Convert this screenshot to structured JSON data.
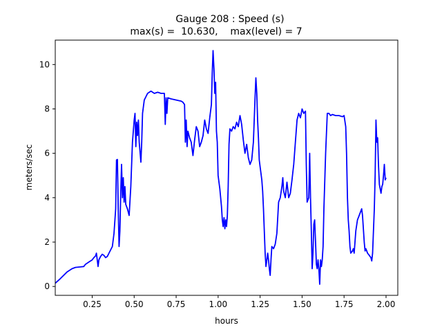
{
  "chart_data": {
    "type": "line",
    "title_line1": "Gauge 208 : Speed (s)",
    "title_line2": "max(s) =  10.630,    max(level) = 7",
    "xlabel": "hours",
    "ylabel": "meters/sec",
    "xlim": [
      0.03,
      2.07
    ],
    "ylim": [
      -0.4,
      11.1
    ],
    "xticks": [
      0.25,
      0.5,
      0.75,
      1.0,
      1.25,
      1.5,
      1.75,
      2.0
    ],
    "xtick_labels": [
      "0.25",
      "0.50",
      "0.75",
      "1.00",
      "1.25",
      "1.50",
      "1.75",
      "2.00"
    ],
    "yticks": [
      0,
      2,
      4,
      6,
      8,
      10
    ],
    "ytick_labels": [
      "0",
      "2",
      "4",
      "6",
      "8",
      "10"
    ],
    "grid": false,
    "line_color": "#0000ff",
    "series": [
      {
        "points": [
          [
            0.03,
            0.15
          ],
          [
            0.06,
            0.35
          ],
          [
            0.1,
            0.65
          ],
          [
            0.13,
            0.8
          ],
          [
            0.15,
            0.86
          ],
          [
            0.18,
            0.88
          ],
          [
            0.2,
            0.9
          ],
          [
            0.21,
            1.0
          ],
          [
            0.23,
            1.1
          ],
          [
            0.25,
            1.2
          ],
          [
            0.26,
            1.3
          ],
          [
            0.27,
            1.38
          ],
          [
            0.275,
            1.5
          ],
          [
            0.28,
            1.2
          ],
          [
            0.285,
            0.9
          ],
          [
            0.29,
            1.2
          ],
          [
            0.3,
            1.35
          ],
          [
            0.31,
            1.45
          ],
          [
            0.32,
            1.4
          ],
          [
            0.33,
            1.3
          ],
          [
            0.34,
            1.35
          ],
          [
            0.35,
            1.5
          ],
          [
            0.37,
            1.8
          ],
          [
            0.38,
            2.4
          ],
          [
            0.39,
            3.5
          ],
          [
            0.395,
            5.7
          ],
          [
            0.4,
            5.72
          ],
          [
            0.405,
            3.5
          ],
          [
            0.41,
            1.8
          ],
          [
            0.415,
            2.5
          ],
          [
            0.42,
            4.2
          ],
          [
            0.425,
            5.5
          ],
          [
            0.43,
            4.0
          ],
          [
            0.435,
            4.9
          ],
          [
            0.44,
            3.8
          ],
          [
            0.445,
            4.5
          ],
          [
            0.45,
            3.7
          ],
          [
            0.46,
            3.5
          ],
          [
            0.47,
            3.2
          ],
          [
            0.48,
            4.5
          ],
          [
            0.49,
            6.5
          ],
          [
            0.5,
            7.5
          ],
          [
            0.505,
            7.8
          ],
          [
            0.51,
            6.3
          ],
          [
            0.515,
            7.4
          ],
          [
            0.52,
            6.8
          ],
          [
            0.525,
            7.5
          ],
          [
            0.53,
            6.5
          ],
          [
            0.54,
            5.6
          ],
          [
            0.545,
            6.5
          ],
          [
            0.55,
            7.8
          ],
          [
            0.56,
            8.4
          ],
          [
            0.58,
            8.7
          ],
          [
            0.6,
            8.8
          ],
          [
            0.62,
            8.7
          ],
          [
            0.64,
            8.75
          ],
          [
            0.66,
            8.7
          ],
          [
            0.68,
            8.7
          ],
          [
            0.685,
            7.3
          ],
          [
            0.69,
            8.5
          ],
          [
            0.695,
            7.8
          ],
          [
            0.7,
            8.5
          ],
          [
            0.72,
            8.45
          ],
          [
            0.75,
            8.4
          ],
          [
            0.78,
            8.35
          ],
          [
            0.79,
            8.3
          ],
          [
            0.8,
            8.2
          ],
          [
            0.805,
            6.5
          ],
          [
            0.81,
            7.5
          ],
          [
            0.815,
            6.3
          ],
          [
            0.82,
            7.0
          ],
          [
            0.83,
            6.7
          ],
          [
            0.84,
            6.5
          ],
          [
            0.85,
            5.9
          ],
          [
            0.86,
            6.6
          ],
          [
            0.87,
            7.2
          ],
          [
            0.88,
            7.0
          ],
          [
            0.89,
            6.3
          ],
          [
            0.9,
            6.5
          ],
          [
            0.91,
            6.8
          ],
          [
            0.92,
            7.5
          ],
          [
            0.93,
            7.1
          ],
          [
            0.94,
            6.9
          ],
          [
            0.95,
            7.6
          ],
          [
            0.96,
            8.2
          ],
          [
            0.965,
            9.6
          ],
          [
            0.97,
            10.63
          ],
          [
            0.975,
            9.8
          ],
          [
            0.98,
            8.7
          ],
          [
            0.985,
            9.2
          ],
          [
            0.99,
            7.0
          ],
          [
            0.995,
            6.5
          ],
          [
            1.0,
            5.0
          ],
          [
            1.01,
            4.4
          ],
          [
            1.02,
            3.6
          ],
          [
            1.025,
            3.0
          ],
          [
            1.03,
            2.7
          ],
          [
            1.035,
            3.1
          ],
          [
            1.04,
            2.6
          ],
          [
            1.045,
            3.0
          ],
          [
            1.05,
            2.7
          ],
          [
            1.055,
            3.2
          ],
          [
            1.06,
            4.5
          ],
          [
            1.065,
            6.4
          ],
          [
            1.07,
            7.1
          ],
          [
            1.08,
            7.0
          ],
          [
            1.09,
            7.2
          ],
          [
            1.1,
            7.1
          ],
          [
            1.11,
            7.4
          ],
          [
            1.12,
            7.2
          ],
          [
            1.13,
            7.7
          ],
          [
            1.14,
            7.3
          ],
          [
            1.15,
            6.6
          ],
          [
            1.16,
            6.0
          ],
          [
            1.17,
            6.4
          ],
          [
            1.18,
            5.8
          ],
          [
            1.19,
            5.5
          ],
          [
            1.2,
            5.7
          ],
          [
            1.21,
            6.5
          ],
          [
            1.22,
            8.5
          ],
          [
            1.225,
            9.4
          ],
          [
            1.23,
            8.7
          ],
          [
            1.235,
            7.5
          ],
          [
            1.24,
            6.7
          ],
          [
            1.245,
            5.7
          ],
          [
            1.25,
            5.4
          ],
          [
            1.26,
            4.8
          ],
          [
            1.265,
            4.3
          ],
          [
            1.27,
            3.5
          ],
          [
            1.275,
            2.5
          ],
          [
            1.28,
            1.5
          ],
          [
            1.285,
            0.9
          ],
          [
            1.29,
            1.2
          ],
          [
            1.295,
            1.5
          ],
          [
            1.3,
            1.2
          ],
          [
            1.305,
            0.8
          ],
          [
            1.31,
            0.5
          ],
          [
            1.315,
            1.2
          ],
          [
            1.32,
            1.8
          ],
          [
            1.33,
            1.7
          ],
          [
            1.34,
            1.9
          ],
          [
            1.35,
            2.4
          ],
          [
            1.36,
            3.8
          ],
          [
            1.37,
            4.0
          ],
          [
            1.38,
            4.5
          ],
          [
            1.385,
            4.9
          ],
          [
            1.39,
            4.3
          ],
          [
            1.4,
            4.0
          ],
          [
            1.41,
            4.7
          ],
          [
            1.42,
            4.0
          ],
          [
            1.43,
            4.2
          ],
          [
            1.44,
            4.8
          ],
          [
            1.45,
            5.5
          ],
          [
            1.46,
            6.5
          ],
          [
            1.47,
            7.5
          ],
          [
            1.48,
            7.8
          ],
          [
            1.49,
            7.6
          ],
          [
            1.5,
            8.0
          ],
          [
            1.51,
            7.8
          ],
          [
            1.52,
            7.9
          ],
          [
            1.525,
            5.5
          ],
          [
            1.53,
            3.8
          ],
          [
            1.54,
            4.0
          ],
          [
            1.545,
            6.0
          ],
          [
            1.55,
            4.0
          ],
          [
            1.555,
            2.5
          ],
          [
            1.56,
            0.8
          ],
          [
            1.565,
            1.5
          ],
          [
            1.57,
            2.8
          ],
          [
            1.575,
            3.0
          ],
          [
            1.58,
            2.0
          ],
          [
            1.585,
            1.0
          ],
          [
            1.59,
            0.8
          ],
          [
            1.595,
            1.2
          ],
          [
            1.6,
            0.8
          ],
          [
            1.605,
            0.1
          ],
          [
            1.61,
            1.2
          ],
          [
            1.615,
            0.9
          ],
          [
            1.62,
            1.2
          ],
          [
            1.625,
            1.8
          ],
          [
            1.63,
            3.5
          ],
          [
            1.64,
            6.0
          ],
          [
            1.65,
            7.8
          ],
          [
            1.66,
            7.8
          ],
          [
            1.67,
            7.7
          ],
          [
            1.68,
            7.75
          ],
          [
            1.7,
            7.7
          ],
          [
            1.72,
            7.7
          ],
          [
            1.74,
            7.65
          ],
          [
            1.75,
            7.7
          ],
          [
            1.76,
            7.2
          ],
          [
            1.765,
            6.0
          ],
          [
            1.77,
            4.0
          ],
          [
            1.775,
            3.0
          ],
          [
            1.78,
            2.5
          ],
          [
            1.785,
            1.8
          ],
          [
            1.79,
            1.5
          ],
          [
            1.8,
            1.6
          ],
          [
            1.805,
            1.7
          ],
          [
            1.81,
            1.5
          ],
          [
            1.82,
            2.5
          ],
          [
            1.83,
            3.0
          ],
          [
            1.84,
            3.2
          ],
          [
            1.85,
            3.4
          ],
          [
            1.855,
            3.5
          ],
          [
            1.86,
            3.2
          ],
          [
            1.87,
            2.0
          ],
          [
            1.875,
            1.6
          ],
          [
            1.88,
            1.7
          ],
          [
            1.89,
            1.5
          ],
          [
            1.9,
            1.4
          ],
          [
            1.91,
            1.3
          ],
          [
            1.915,
            1.15
          ],
          [
            1.92,
            1.5
          ],
          [
            1.93,
            3.5
          ],
          [
            1.935,
            5.0
          ],
          [
            1.94,
            7.5
          ],
          [
            1.945,
            6.5
          ],
          [
            1.95,
            6.7
          ],
          [
            1.955,
            5.5
          ],
          [
            1.96,
            4.6
          ],
          [
            1.965,
            4.4
          ],
          [
            1.97,
            4.2
          ],
          [
            1.975,
            4.5
          ],
          [
            1.98,
            4.6
          ],
          [
            1.985,
            5.0
          ],
          [
            1.99,
            5.5
          ],
          [
            1.995,
            4.8
          ],
          [
            2.0,
            4.9
          ]
        ]
      }
    ]
  }
}
